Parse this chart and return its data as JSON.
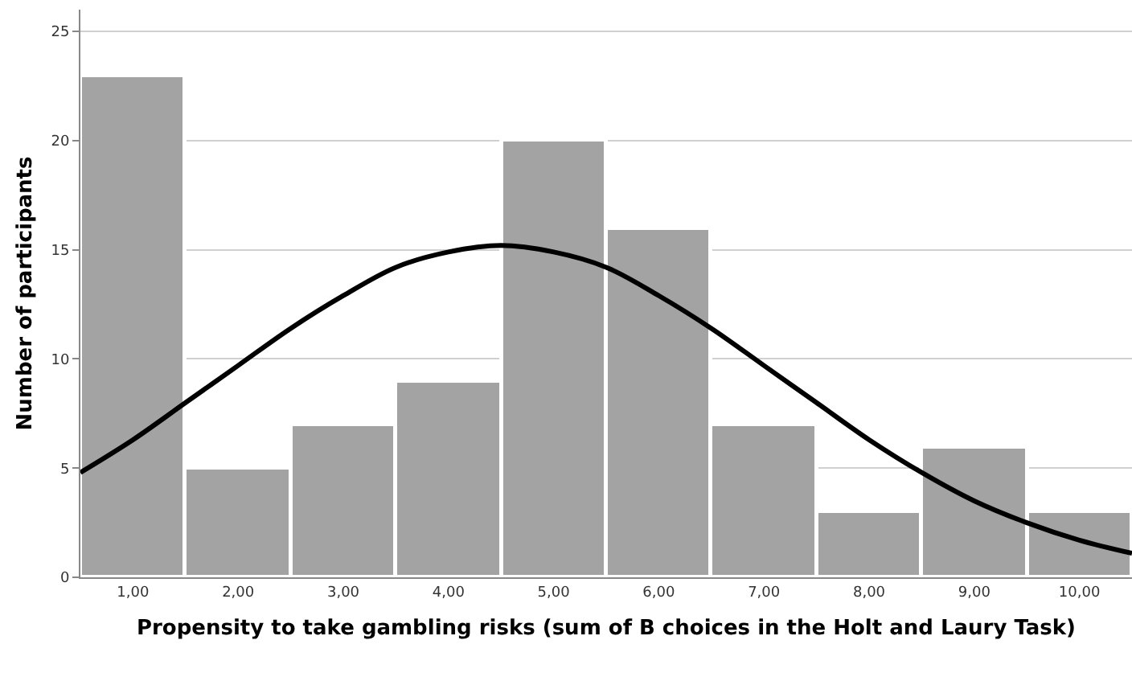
{
  "chart_data": {
    "type": "histogram",
    "xlabel": "Propensity to take gambling risks (sum of B choices in the Holt and Laury Task)",
    "ylabel": "Number of participants",
    "bins": [
      0.5,
      1.5,
      2.5,
      3.5,
      4.5,
      5.5,
      6.5,
      7.5,
      8.5,
      9.5,
      10.5
    ],
    "values": [
      23,
      5,
      7,
      9,
      20,
      16,
      7,
      3,
      6,
      3
    ],
    "color": "#a3a3a3",
    "series": [
      {
        "type": "line",
        "color": "#000000",
        "x": [
          0.5,
          1,
          1.5,
          2,
          2.5,
          3,
          3.5,
          4,
          4.5,
          5,
          5.5,
          6,
          6.5,
          7,
          7.5,
          8,
          8.5,
          9,
          9.5,
          10,
          10.5
        ],
        "values": [
          4.8,
          6.3,
          8.0,
          9.7,
          11.4,
          12.9,
          14.2,
          14.9,
          15.2,
          14.9,
          14.2,
          12.9,
          11.4,
          9.7,
          8.0,
          6.3,
          4.8,
          3.5,
          2.5,
          1.7,
          1.1
        ]
      }
    ],
    "xlim": [
      0.5,
      10.5
    ],
    "xticks": [
      {
        "value": 1,
        "label": "1,00"
      },
      {
        "value": 2,
        "label": "2,00"
      },
      {
        "value": 3,
        "label": "3,00"
      },
      {
        "value": 4,
        "label": "4,00"
      },
      {
        "value": 5,
        "label": "5,00"
      },
      {
        "value": 6,
        "label": "6,00"
      },
      {
        "value": 7,
        "label": "7,00"
      },
      {
        "value": 8,
        "label": "8,00"
      },
      {
        "value": 9,
        "label": "9,00"
      },
      {
        "value": 10,
        "label": "10,00"
      }
    ],
    "ylim": [
      0,
      26
    ],
    "yticks": [
      0,
      5,
      10,
      15,
      20,
      25
    ],
    "grid": "y",
    "marker": "none",
    "line_style": "solid"
  }
}
